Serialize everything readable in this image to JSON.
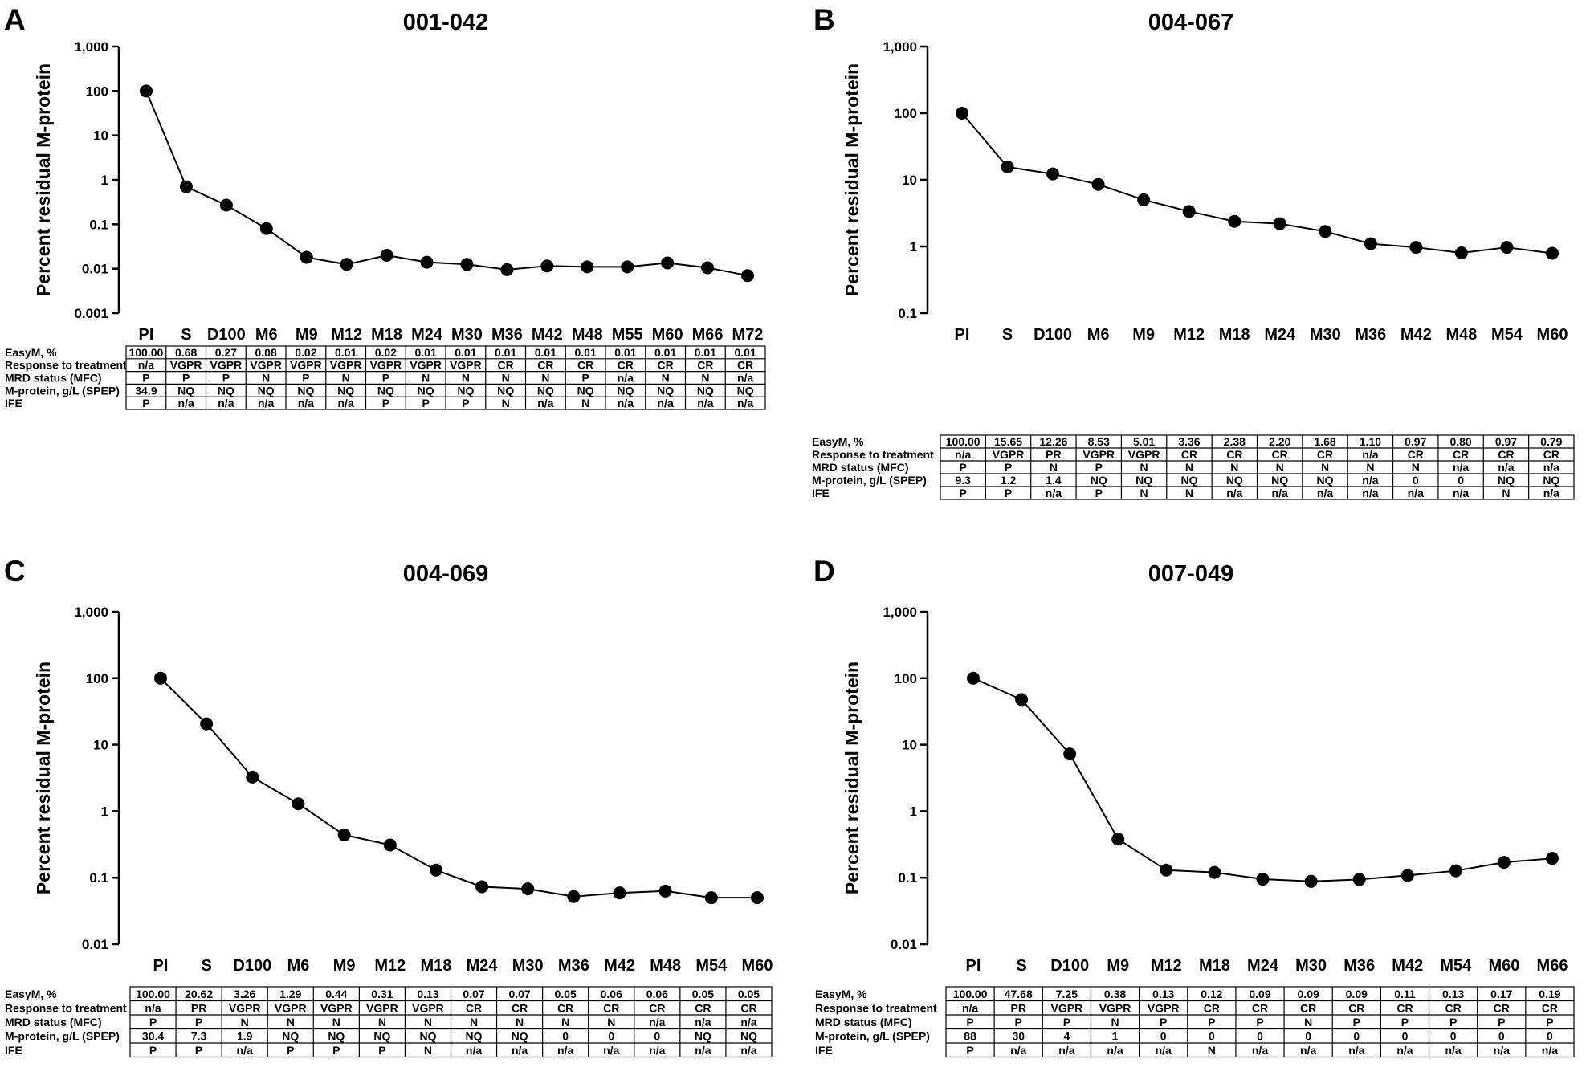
{
  "chart_data": [
    {
      "panel": "A",
      "title": "001-042",
      "type": "line",
      "ylabel": "Percent residual M-protein",
      "yscale": "log",
      "ylim": [
        0.001,
        1000
      ],
      "yticks": [
        "0.001",
        "0.01",
        "0.1",
        "1",
        "10",
        "100",
        "1,000"
      ],
      "categories": [
        "PI",
        "S",
        "D100",
        "M6",
        "M9",
        "M12",
        "M18",
        "M24",
        "M30",
        "M36",
        "M42",
        "M48",
        "M55",
        "M60",
        "M66",
        "M72"
      ],
      "values": [
        100,
        0.7,
        0.27,
        0.08,
        0.018,
        0.0125,
        0.02,
        0.014,
        0.0125,
        0.0095,
        0.0115,
        0.011,
        0.011,
        0.0135,
        0.0105,
        0.007
      ],
      "table": {
        "rows": [
          {
            "label": "EasyM, %",
            "cells": [
              "100.00",
              "0.68",
              "0.27",
              "0.08",
              "0.02",
              "0.01",
              "0.02",
              "0.01",
              "0.01",
              "0.01",
              "0.01",
              "0.01",
              "0.01",
              "0.01",
              "0.01",
              "0.01"
            ]
          },
          {
            "label": "Response to treatment",
            "cells": [
              "n/a",
              "VGPR",
              "VGPR",
              "VGPR",
              "VGPR",
              "VGPR",
              "VGPR",
              "VGPR",
              "VGPR",
              "CR",
              "CR",
              "CR",
              "CR",
              "CR",
              "CR",
              "CR"
            ]
          },
          {
            "label": "MRD status (MFC)",
            "cells": [
              "P",
              "P",
              "P",
              "N",
              "P",
              "N",
              "P",
              "N",
              "N",
              "N",
              "N",
              "P",
              "n/a",
              "N",
              "N",
              "n/a"
            ]
          },
          {
            "label": "M-protein, g/L (SPEP)",
            "cells": [
              "34.9",
              "NQ",
              "NQ",
              "NQ",
              "NQ",
              "NQ",
              "NQ",
              "NQ",
              "NQ",
              "NQ",
              "NQ",
              "NQ",
              "NQ",
              "NQ",
              "NQ",
              "NQ"
            ]
          },
          {
            "label": "IFE",
            "cells": [
              "P",
              "n/a",
              "n/a",
              "n/a",
              "n/a",
              "n/a",
              "P",
              "P",
              "P",
              "N",
              "n/a",
              "N",
              "n/a",
              "n/a",
              "n/a",
              "n/a"
            ]
          }
        ]
      }
    },
    {
      "panel": "B",
      "title": "004-067",
      "type": "line",
      "ylabel": "Percent residual M-protein",
      "yscale": "log",
      "ylim": [
        0.1,
        1000
      ],
      "yticks": [
        "0.1",
        "1",
        "10",
        "100",
        "1,000"
      ],
      "categories": [
        "PI",
        "S",
        "D100",
        "M6",
        "M9",
        "M12",
        "M18",
        "M24",
        "M30",
        "M36",
        "M42",
        "M48",
        "M54",
        "M60"
      ],
      "values": [
        100,
        15.65,
        12.26,
        8.53,
        5.01,
        3.36,
        2.38,
        2.2,
        1.68,
        1.1,
        0.97,
        0.8,
        0.97,
        0.79
      ],
      "table": {
        "rows": [
          {
            "label": "EasyM, %",
            "cells": [
              "100.00",
              "15.65",
              "12.26",
              "8.53",
              "5.01",
              "3.36",
              "2.38",
              "2.20",
              "1.68",
              "1.10",
              "0.97",
              "0.80",
              "0.97",
              "0.79"
            ]
          },
          {
            "label": "Response to treatment",
            "cells": [
              "n/a",
              "VGPR",
              "PR",
              "VGPR",
              "VGPR",
              "CR",
              "CR",
              "CR",
              "CR",
              "n/a",
              "CR",
              "CR",
              "CR",
              "CR"
            ]
          },
          {
            "label": "MRD status (MFC)",
            "cells": [
              "P",
              "P",
              "N",
              "P",
              "N",
              "N",
              "N",
              "N",
              "N",
              "N",
              "N",
              "n/a",
              "n/a",
              "n/a"
            ]
          },
          {
            "label": "M-protein, g/L (SPEP)",
            "cells": [
              "9.3",
              "1.2",
              "1.4",
              "NQ",
              "NQ",
              "NQ",
              "NQ",
              "NQ",
              "NQ",
              "n/a",
              "0",
              "0",
              "NQ",
              "NQ"
            ]
          },
          {
            "label": "IFE",
            "cells": [
              "P",
              "P",
              "n/a",
              "P",
              "N",
              "N",
              "n/a",
              "n/a",
              "n/a",
              "n/a",
              "n/a",
              "n/a",
              "N",
              "n/a"
            ]
          }
        ]
      }
    },
    {
      "panel": "C",
      "title": "004-069",
      "type": "line",
      "ylabel": "Percent residual M-protein",
      "yscale": "log",
      "ylim": [
        0.01,
        1000
      ],
      "yticks": [
        "0.01",
        "0.1",
        "1",
        "10",
        "100",
        "1,000"
      ],
      "categories": [
        "PI",
        "S",
        "D100",
        "M6",
        "M9",
        "M12",
        "M18",
        "M24",
        "M30",
        "M36",
        "M42",
        "M48",
        "M54",
        "M60"
      ],
      "values": [
        100,
        20.62,
        3.26,
        1.29,
        0.44,
        0.31,
        0.13,
        0.073,
        0.068,
        0.052,
        0.059,
        0.063,
        0.05,
        0.05
      ],
      "table": {
        "rows": [
          {
            "label": "EasyM, %",
            "cells": [
              "100.00",
              "20.62",
              "3.26",
              "1.29",
              "0.44",
              "0.31",
              "0.13",
              "0.07",
              "0.07",
              "0.05",
              "0.06",
              "0.06",
              "0.05",
              "0.05"
            ]
          },
          {
            "label": "Response to treatment",
            "cells": [
              "n/a",
              "PR",
              "VGPR",
              "VGPR",
              "VGPR",
              "VGPR",
              "VGPR",
              "CR",
              "CR",
              "CR",
              "CR",
              "CR",
              "CR",
              "CR"
            ]
          },
          {
            "label": "MRD status (MFC)",
            "cells": [
              "P",
              "P",
              "N",
              "N",
              "N",
              "N",
              "N",
              "N",
              "N",
              "N",
              "N",
              "n/a",
              "n/a",
              "n/a"
            ]
          },
          {
            "label": "M-protein, g/L (SPEP)",
            "cells": [
              "30.4",
              "7.3",
              "1.9",
              "NQ",
              "NQ",
              "NQ",
              "NQ",
              "NQ",
              "NQ",
              "0",
              "0",
              "0",
              "NQ",
              "NQ"
            ]
          },
          {
            "label": "IFE",
            "cells": [
              "P",
              "P",
              "n/a",
              "P",
              "P",
              "P",
              "N",
              "n/a",
              "n/a",
              "n/a",
              "n/a",
              "n/a",
              "n/a",
              "n/a"
            ]
          }
        ]
      }
    },
    {
      "panel": "D",
      "title": "007-049",
      "type": "line",
      "ylabel": "Percent residual M-protein",
      "yscale": "log",
      "ylim": [
        0.01,
        1000
      ],
      "yticks": [
        "0.01",
        "0.1",
        "1",
        "10",
        "100",
        "1,000"
      ],
      "categories": [
        "PI",
        "S",
        "D100",
        "M9",
        "M12",
        "M18",
        "M24",
        "M30",
        "M36",
        "M42",
        "M54",
        "M60",
        "M66"
      ],
      "values": [
        100,
        47.68,
        7.25,
        0.38,
        0.13,
        0.12,
        0.095,
        0.088,
        0.094,
        0.108,
        0.127,
        0.17,
        0.195
      ],
      "table": {
        "rows": [
          {
            "label": "EasyM, %",
            "cells": [
              "100.00",
              "47.68",
              "7.25",
              "0.38",
              "0.13",
              "0.12",
              "0.09",
              "0.09",
              "0.09",
              "0.11",
              "0.13",
              "0.17",
              "0.19"
            ]
          },
          {
            "label": "Response to treatment",
            "cells": [
              "n/a",
              "PR",
              "VGPR",
              "VGPR",
              "VGPR",
              "CR",
              "CR",
              "CR",
              "CR",
              "CR",
              "CR",
              "CR",
              "CR"
            ]
          },
          {
            "label": "MRD status (MFC)",
            "cells": [
              "P",
              "P",
              "P",
              "N",
              "P",
              "P",
              "P",
              "N",
              "P",
              "P",
              "P",
              "P",
              "P"
            ]
          },
          {
            "label": "M-protein, g/L (SPEP)",
            "cells": [
              "88",
              "30",
              "4",
              "1",
              "0",
              "0",
              "0",
              "0",
              "0",
              "0",
              "0",
              "0",
              "0"
            ]
          },
          {
            "label": "IFE",
            "cells": [
              "P",
              "n/a",
              "n/a",
              "n/a",
              "n/a",
              "N",
              "n/a",
              "n/a",
              "n/a",
              "n/a",
              "n/a",
              "n/a",
              "n/a"
            ]
          }
        ]
      }
    }
  ]
}
